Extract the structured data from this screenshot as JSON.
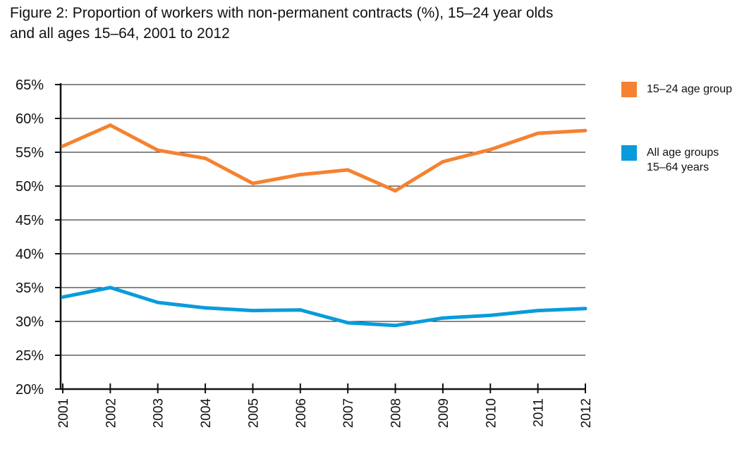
{
  "title_line1": "Figure 2: Proportion of workers with non-permanent contracts (%), 15–24 year olds",
  "title_line2": "and all ages 15–64, 2001 to 2012",
  "chart_data": {
    "type": "line",
    "title": "Figure 2: Proportion of workers with non-permanent contracts (%), 15–24 year olds and all ages 15–64, 2001 to 2012",
    "xlabel": "",
    "ylabel": "",
    "categories": [
      "2001",
      "2002",
      "2003",
      "2004",
      "2005",
      "2006",
      "2007",
      "2008",
      "2009",
      "2010",
      "2011",
      "2012"
    ],
    "ylim": [
      20,
      65
    ],
    "yticks": [
      20,
      25,
      30,
      35,
      40,
      45,
      50,
      55,
      60,
      65
    ],
    "ytick_labels": [
      "20%",
      "25%",
      "30%",
      "35%",
      "40%",
      "45%",
      "50%",
      "55%",
      "60%",
      "65%"
    ],
    "grid": true,
    "legend_position": "right",
    "series": [
      {
        "name": "15–24 age group",
        "color": "#f58231",
        "values": [
          55.9,
          59.0,
          55.3,
          54.1,
          50.4,
          51.7,
          52.4,
          49.3,
          53.6,
          55.4,
          57.8,
          58.2
        ]
      },
      {
        "name": "All age groups 15–64 years",
        "color": "#0a9bdc",
        "values": [
          33.6,
          35.0,
          32.8,
          32.0,
          31.6,
          31.7,
          29.8,
          29.4,
          30.5,
          30.9,
          31.6,
          31.9
        ]
      }
    ]
  },
  "legend": [
    {
      "line1": "15–24 age group",
      "line2": ""
    },
    {
      "line1": "All age groups",
      "line2": "15–64 years"
    }
  ]
}
